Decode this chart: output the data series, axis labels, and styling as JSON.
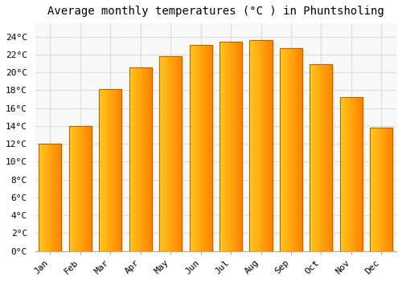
{
  "title": "Average monthly temperatures (°C ) in Phuntsholing",
  "months": [
    "Jan",
    "Feb",
    "Mar",
    "Apr",
    "May",
    "Jun",
    "Jul",
    "Aug",
    "Sep",
    "Oct",
    "Nov",
    "Dec"
  ],
  "values": [
    12.0,
    14.0,
    18.1,
    20.6,
    21.8,
    23.1,
    23.4,
    23.6,
    22.7,
    20.9,
    17.2,
    13.8
  ],
  "bar_color_left": "#FFD040",
  "bar_color_right": "#FFA000",
  "bar_edge_color": "#888800",
  "background_color": "#FFFFFF",
  "plot_bg_color": "#F8F8F8",
  "grid_color": "#DDDDDD",
  "ytick_labels": [
    "0°C",
    "2°C",
    "4°C",
    "6°C",
    "8°C",
    "10°C",
    "12°C",
    "14°C",
    "16°C",
    "18°C",
    "20°C",
    "22°C",
    "24°C"
  ],
  "ytick_values": [
    0,
    2,
    4,
    6,
    8,
    10,
    12,
    14,
    16,
    18,
    20,
    22,
    24
  ],
  "ylim": [
    0,
    25.5
  ],
  "title_fontsize": 10,
  "tick_fontsize": 8,
  "font_family": "monospace"
}
